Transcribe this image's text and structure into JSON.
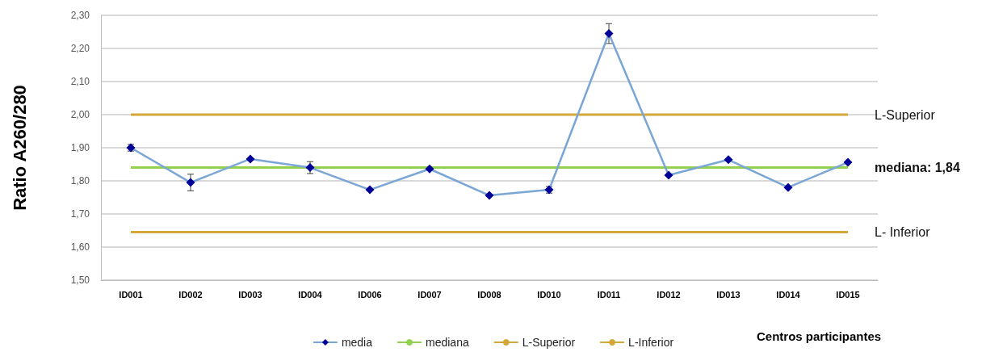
{
  "chart_data": {
    "type": "line",
    "xlabel": "Centros participantes",
    "ylabel": "Ratio A260/280",
    "categories": [
      "ID001",
      "ID002",
      "ID003",
      "ID004",
      "ID006",
      "ID007",
      "ID008",
      "ID010",
      "ID011",
      "ID012",
      "ID013",
      "ID014",
      "ID015"
    ],
    "series": [
      {
        "name": "media",
        "color": "#7aa6d6",
        "marker": "diamond",
        "values": [
          1.9,
          1.795,
          1.866,
          1.84,
          1.773,
          1.836,
          1.756,
          1.773,
          2.245,
          1.817,
          1.864,
          1.78,
          1.856
        ],
        "errors": [
          0.01,
          0.025,
          null,
          0.018,
          null,
          null,
          null,
          0.01,
          0.03,
          null,
          null,
          null,
          null
        ]
      },
      {
        "name": "mediana",
        "color": "#92d050",
        "marker": "none",
        "values": [
          1.84,
          1.84,
          1.84,
          1.84,
          1.84,
          1.84,
          1.84,
          1.84,
          1.84,
          1.84,
          1.84,
          1.84,
          1.84
        ]
      },
      {
        "name": "L-Superior",
        "color": "#d4a838",
        "marker": "none",
        "values": [
          2.0,
          2.0,
          2.0,
          2.0,
          2.0,
          2.0,
          2.0,
          2.0,
          2.0,
          2.0,
          2.0,
          2.0,
          2.0
        ]
      },
      {
        "name": "L-Inferior",
        "color": "#d4a838",
        "marker": "none",
        "values": [
          1.645,
          1.645,
          1.645,
          1.645,
          1.645,
          1.645,
          1.645,
          1.645,
          1.645,
          1.645,
          1.645,
          1.645,
          1.645
        ]
      }
    ],
    "annotations": [
      {
        "text": "L-Superior",
        "x": "ID015",
        "y": 2.0
      },
      {
        "text": "mediana: 1,84",
        "x": "ID015",
        "y": 1.84
      },
      {
        "text": "L- Inferior",
        "x": "ID015",
        "y": 1.645
      }
    ],
    "ylim": [
      1.5,
      2.3
    ],
    "yticks": [
      {
        "value": 1.5,
        "label": "1,50"
      },
      {
        "value": 1.6,
        "label": "1,60"
      },
      {
        "value": 1.7,
        "label": "1,70"
      },
      {
        "value": 1.8,
        "label": "1,80"
      },
      {
        "value": 1.9,
        "label": "1,90"
      },
      {
        "value": 2.0,
        "label": "2,00"
      },
      {
        "value": 2.1,
        "label": "2,10"
      },
      {
        "value": 2.2,
        "label": "2,20"
      },
      {
        "value": 2.3,
        "label": "2,30"
      }
    ],
    "grid": "y",
    "legend": "bottom"
  }
}
